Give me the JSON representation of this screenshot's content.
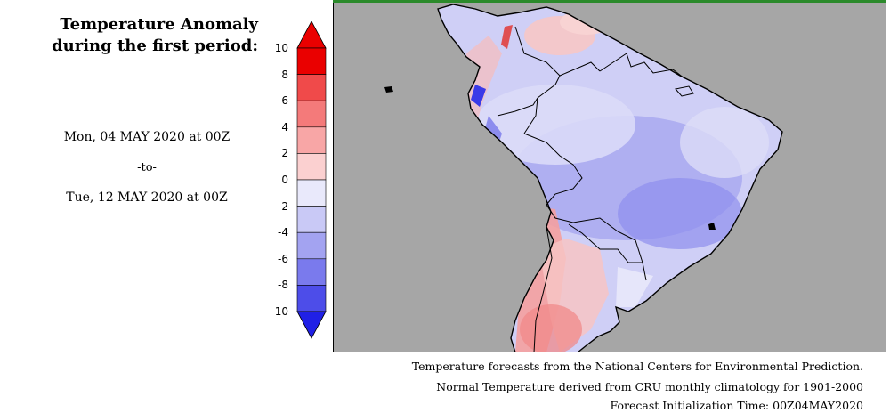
{
  "title": {
    "line1": "Temperature Anomaly",
    "line2": "during the first period:"
  },
  "period": {
    "start": "Mon, 04 MAY 2020 at 00Z",
    "separator": "-to-",
    "end": "Tue, 12 MAY 2020 at 00Z"
  },
  "legend": {
    "ticks": [
      "10",
      "8",
      "6",
      "4",
      "2",
      "0",
      "-2",
      "-4",
      "-6",
      "-8",
      "-10"
    ],
    "colors": [
      "#ea0000",
      "#f04a4a",
      "#f47a7a",
      "#f8a6a6",
      "#fbd0d0",
      "#e9e9fb",
      "#c9c9f6",
      "#a3a3f1",
      "#7a7aed",
      "#4d4de9",
      "#2020e6"
    ]
  },
  "map": {
    "ocean_color": "#a6a6a6",
    "frame_color": "#2b8a2b"
  },
  "footer": {
    "line1": "Temperature forecasts from the National Centers for Environmental Prediction.",
    "line2": "Normal Temperature derived from CRU monthly climatology for 1901-2000",
    "line3": "Forecast Initialization Time: 00Z04MAY2020"
  }
}
